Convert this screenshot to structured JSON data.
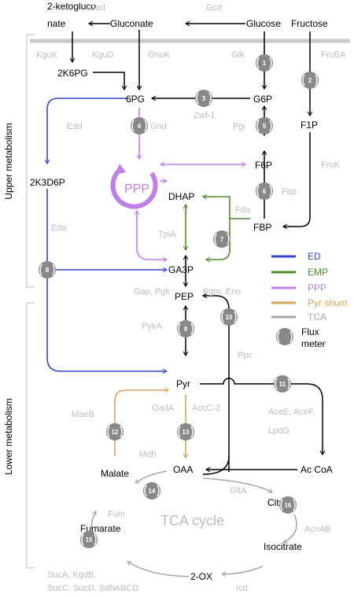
{
  "colors": {
    "ed": "#3344cc",
    "emp": "#4a8f2a",
    "ppp": "#c07ee8",
    "pyr_shunt": "#d9a15c",
    "tca": "#a8a8a8",
    "main": "#000000",
    "enzyme": "#bdbdbd",
    "meter": "#888888",
    "membrane": "#c8c8c8"
  },
  "metabolites": {
    "ketogluconate_line1": "2-ketogluco",
    "ketogluconate_line2": "nate",
    "gluconate": "Gluconate",
    "glucose": "Glucose",
    "fructose": "Fructose",
    "k6pg": "2K6PG",
    "pg6": "6PG",
    "g6p": "G6P",
    "f1p": "F1P",
    "f6p": "F6P",
    "k3d6p": "2K3D6P",
    "dhap": "DHAP",
    "fbp": "FBP",
    "ga3p": "GA3P",
    "pep": "PEP",
    "pyr": "Pyr",
    "oaa": "OAA",
    "acetylcoa": "Ac CoA",
    "malate": "Malate",
    "citrate": "Citrate",
    "fumarate": "Fumarate",
    "isocitrate": "Isocitrate",
    "ox2": "2-OX",
    "ppp": "PPP"
  },
  "enzymes": {
    "gad": "Gad",
    "gcd": "Gcd",
    "kguk": "KguK",
    "kgud": "KguD",
    "gnuk": "GnuK",
    "glk": "Glk",
    "fruba": "FruBA",
    "edd": "Edd",
    "gnd": "Gnd",
    "zwf": "Zwf-1",
    "pgi": "Pgi",
    "fruk": "FruK",
    "fbp": "Fbp",
    "fda": "Fda",
    "tpia": "TpiA",
    "eda": "Eda",
    "gap_pgk": "Gap, Pgk",
    "pgm_eno": "Pgm, Eno",
    "pyka": "PykA",
    "ppc": "Ppc",
    "maeb": "MaeB",
    "oada": "OadA",
    "accc": "AccC-2",
    "acee": "AceE, AceF,",
    "lpdg": "LpdG",
    "mdh": "Mdh",
    "glta": "GltA",
    "fum": "Fum",
    "acnab": "AcnAB",
    "suca": "SucA, KgdB,",
    "succ": "SucC, SucD, SdhABCD",
    "icd": "Icd"
  },
  "tca_cycle_label": "TCA cycle",
  "side_labels": {
    "upper": "Upper metabolism",
    "lower": "Lower metabolism"
  },
  "flux_meters": [
    "1",
    "2",
    "3",
    "4",
    "5",
    "6",
    "7",
    "8",
    "9",
    "10",
    "11",
    "12",
    "13",
    "14",
    "15",
    "16"
  ],
  "legend": {
    "ed": "ED",
    "emp": "EMP",
    "ppp": "PPP",
    "pyr_shunt": "Pyr shunt",
    "tca": "TCA",
    "flux_meter_line1": "Flux",
    "flux_meter_line2": "meter"
  }
}
